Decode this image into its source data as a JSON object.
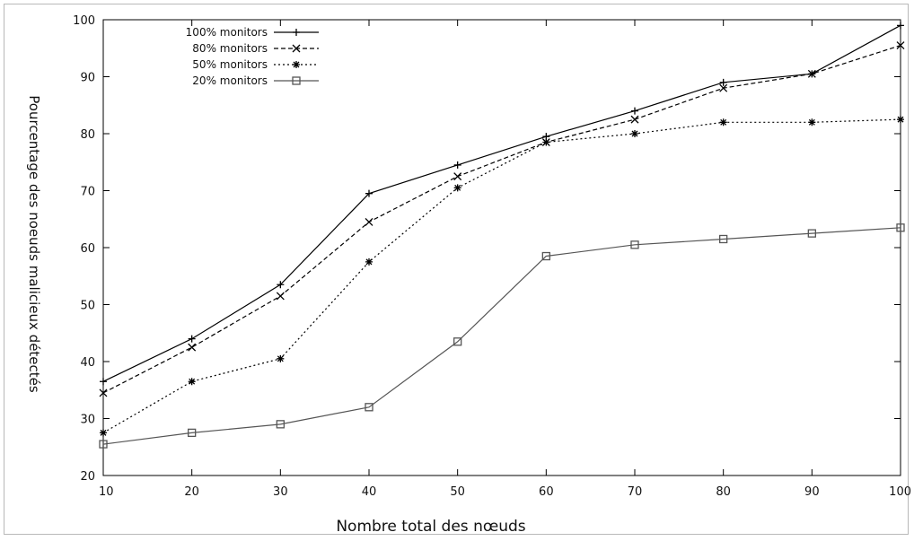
{
  "chart_data": {
    "type": "line",
    "title": "",
    "xlabel": "Nombre total des nœuds",
    "ylabel": "Pourcentage des noeuds malicieux détectés",
    "x": [
      10,
      20,
      30,
      40,
      50,
      60,
      70,
      80,
      90,
      100
    ],
    "xlim": [
      10,
      100
    ],
    "ylim": [
      20,
      100
    ],
    "x_ticks": [
      "10",
      "20",
      "30",
      "40",
      "50",
      "60",
      "70",
      "80",
      "90",
      "100"
    ],
    "y_ticks": [
      "20",
      "30",
      "40",
      "50",
      "60",
      "70",
      "80",
      "90",
      "100"
    ],
    "grid": false,
    "legend_position": "top-left",
    "series": [
      {
        "name": "100% monitors",
        "marker": "plus",
        "dash": "solid",
        "color": "#000000",
        "values": [
          36.5,
          44,
          53.5,
          69.5,
          74.5,
          79.5,
          84,
          89,
          90.5,
          99
        ]
      },
      {
        "name": "80% monitors",
        "marker": "cross",
        "dash": "dashed",
        "color": "#000000",
        "values": [
          34.5,
          42.5,
          51.5,
          64.5,
          72.5,
          78.5,
          82.5,
          88,
          90.5,
          95.5
        ]
      },
      {
        "name": "50% monitors",
        "marker": "star",
        "dash": "dotted",
        "color": "#000000",
        "values": [
          27.5,
          36.5,
          40.5,
          57.5,
          70.5,
          78.5,
          80,
          82,
          82,
          82.5
        ]
      },
      {
        "name": "20% monitors",
        "marker": "square",
        "dash": "solid",
        "color": "#555555",
        "values": [
          25.5,
          27.5,
          29,
          32,
          43.5,
          58.5,
          60.5,
          61.5,
          62.5,
          63.5
        ]
      }
    ]
  }
}
